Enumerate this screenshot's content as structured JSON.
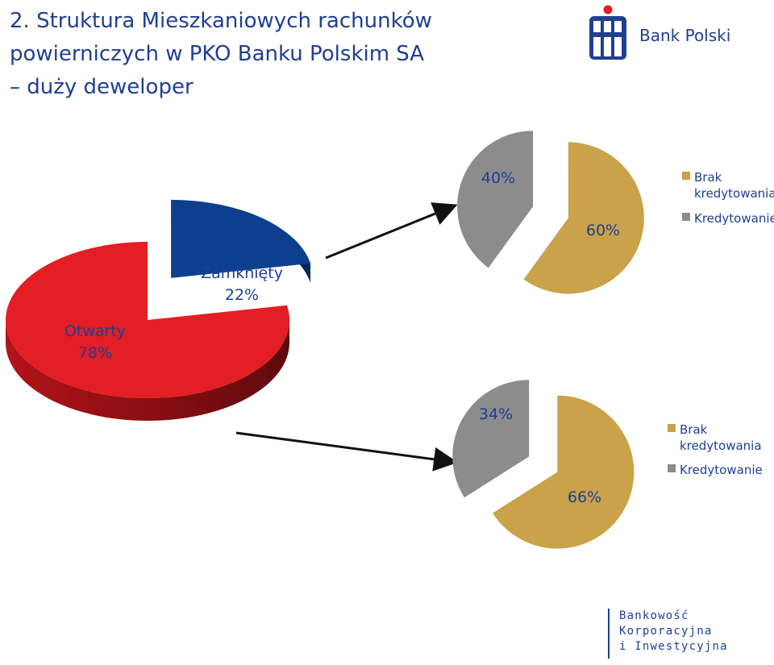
{
  "title": {
    "line1": "2. Struktura Mieszkaniowych rachunków",
    "line2": "powierniczych w PKO Banku Polskim SA",
    "line3": "– duży deweloper"
  },
  "logo": {
    "text": "Bank Polski",
    "brand_color": "#1f3f93",
    "dot_color": "#e31e24"
  },
  "footer": {
    "line1": "Bankowość",
    "line2": "Korporacyjna",
    "line3": "i Inwestycyjna"
  },
  "colors": {
    "otwarty": "#e31e24",
    "zamkniety": "#0d3f8f",
    "brak": "#c9a24a",
    "kredytowanie": "#8c8c8c",
    "text": "#1f3f93"
  },
  "chart_data": [
    {
      "type": "pie",
      "style": "3d",
      "slices": [
        {
          "label": "Otwarty",
          "value": 78,
          "value_label": "78%"
        },
        {
          "label": "Zamknięty",
          "value": 22,
          "value_label": "22%"
        }
      ]
    },
    {
      "type": "pie",
      "slices": [
        {
          "label": "Brak kredytowania",
          "value": 60,
          "value_label": "60%"
        },
        {
          "label": "Kredytowanie",
          "value": 40,
          "value_label": "40%"
        }
      ],
      "legend": [
        "Brak kredytowania",
        "Kredytowanie"
      ]
    },
    {
      "type": "pie",
      "slices": [
        {
          "label": "Brak kredytowania",
          "value": 66,
          "value_label": "66%"
        },
        {
          "label": "Kredytowanie",
          "value": 34,
          "value_label": "34%"
        }
      ],
      "legend": [
        "Brak kredytowania",
        "Kredytowanie"
      ]
    }
  ],
  "legend": {
    "brak_line1": "Brak",
    "brak_line2": "kredytowania",
    "kredytowanie": "Kredytowanie"
  }
}
